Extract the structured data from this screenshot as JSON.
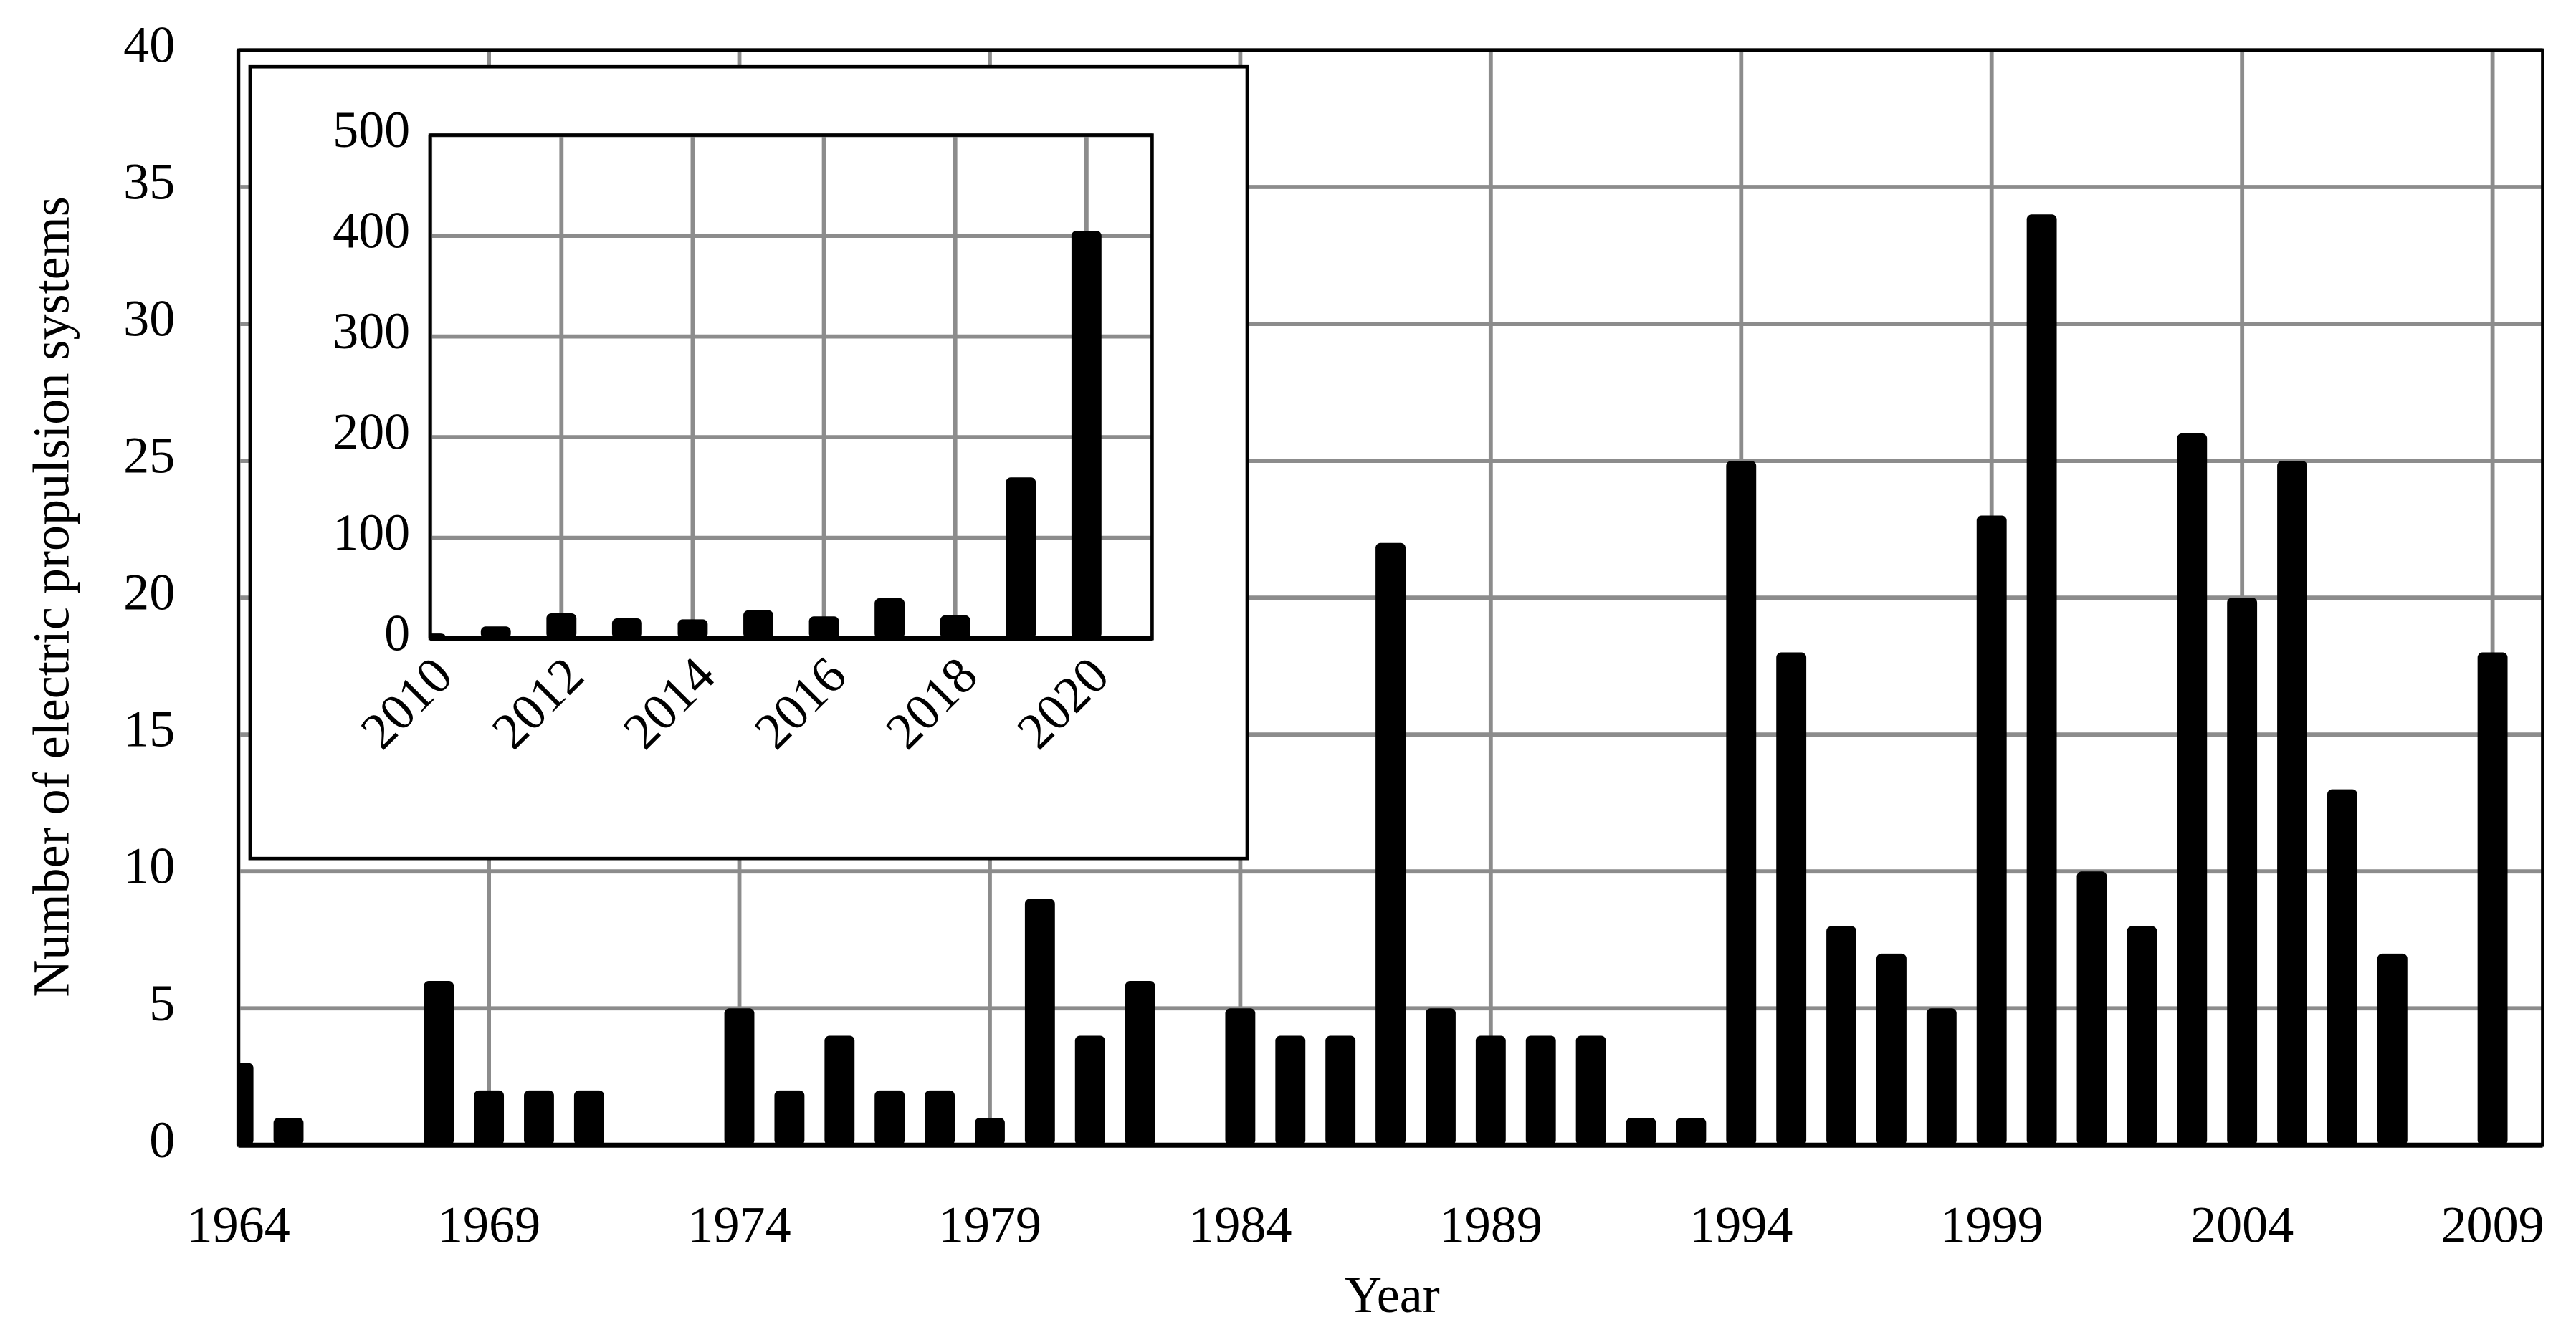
{
  "chart_data": [
    {
      "type": "bar",
      "x_label": "Year",
      "y_label": "Number of electric propulsion systems",
      "x": [
        1964,
        1965,
        1966,
        1967,
        1968,
        1969,
        1970,
        1971,
        1972,
        1973,
        1974,
        1975,
        1976,
        1977,
        1978,
        1979,
        1980,
        1981,
        1982,
        1983,
        1984,
        1985,
        1986,
        1987,
        1988,
        1989,
        1990,
        1991,
        1992,
        1993,
        1994,
        1995,
        1996,
        1997,
        1998,
        1999,
        2000,
        2001,
        2002,
        2003,
        2004,
        2005,
        2006,
        2007,
        2008,
        2009
      ],
      "values": [
        3,
        1,
        0,
        0,
        6,
        2,
        2,
        2,
        0,
        0,
        5,
        2,
        4,
        2,
        2,
        1,
        9,
        4,
        6,
        0,
        5,
        4,
        4,
        22,
        5,
        4,
        4,
        4,
        1,
        1,
        25,
        18,
        8,
        7,
        5,
        23,
        34,
        10,
        8,
        26,
        20,
        25,
        13,
        7,
        0,
        18
      ],
      "color": "#000000",
      "xlim": [
        1964,
        2010
      ],
      "xticks": [
        1964,
        1969,
        1974,
        1979,
        1984,
        1989,
        1994,
        1999,
        2004,
        2009
      ],
      "ylim": [
        0,
        40
      ],
      "yticks": [
        0,
        5,
        10,
        15,
        20,
        25,
        30,
        35,
        40
      ],
      "grid": true
    },
    {
      "type": "bar",
      "x": [
        2010,
        2011,
        2012,
        2013,
        2014,
        2015,
        2016,
        2017,
        2018,
        2019,
        2020
      ],
      "values": [
        5,
        12,
        25,
        20,
        19,
        28,
        22,
        40,
        23,
        160,
        405
      ],
      "color": "#000000",
      "xlim": [
        2010,
        2021
      ],
      "xticks": [
        2010,
        2012,
        2014,
        2016,
        2018,
        2020
      ],
      "ylim": [
        0,
        500
      ],
      "yticks": [
        0,
        100,
        200,
        300,
        400,
        500
      ],
      "grid": true
    }
  ]
}
